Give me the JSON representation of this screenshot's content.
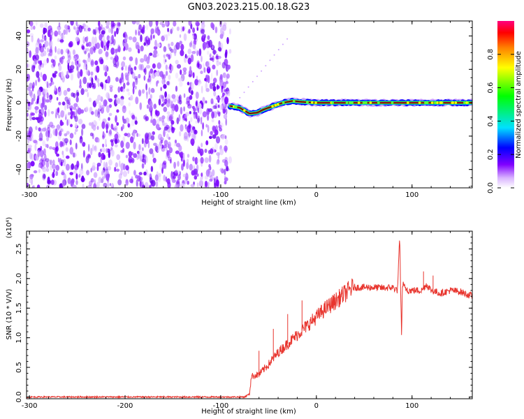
{
  "title": "GN03.2023.215.00.18.G23",
  "colors": {
    "snr_line": "#e8352e",
    "track": "#111111"
  },
  "chart_data": [
    {
      "type": "heatmap",
      "xlabel": "Height of straight line (km)",
      "ylabel": "Frequency (Hz)",
      "xlim": [
        -303,
        163
      ],
      "ylim": [
        -51,
        49
      ],
      "xticks": [
        -300,
        -200,
        -100,
        0,
        100
      ],
      "yticks": [
        -40,
        -20,
        0,
        20,
        40
      ],
      "grid": false,
      "colorbar": {
        "label": "Normalized spectral amplitude",
        "range": [
          0,
          1
        ],
        "ticks": [
          "0.0",
          "0.2",
          "0.4",
          "0.6",
          "0.8"
        ]
      },
      "regions": [
        {
          "x": [
            -303,
            -90
          ],
          "description": "noise",
          "frequency_range": [
            -51,
            49
          ]
        },
        {
          "x": [
            -90,
            163
          ],
          "description": "signal",
          "frequency_range": [
            -8,
            3
          ]
        }
      ],
      "track": {
        "x": [
          -90,
          -80,
          -70,
          -62,
          -55,
          -45,
          -35,
          -25,
          -15,
          0,
          30,
          60,
          100,
          130,
          163
        ],
        "y": [
          -2,
          -3,
          -6.5,
          -6,
          -4,
          -2,
          0,
          1,
          0.5,
          0,
          0,
          0,
          0,
          0,
          0
        ]
      }
    },
    {
      "type": "line",
      "xlabel": "Height of straight line (km)",
      "ylabel": "SNR (10 * V/V)",
      "y_multiplier": "(x10⁴)",
      "xlim": [
        -303,
        163
      ],
      "ylim": [
        -0.03,
        2.8
      ],
      "xticks": [
        -300,
        -200,
        -100,
        0,
        100
      ],
      "yticks": [
        "0.0",
        "0.5",
        "1.0",
        "1.5",
        "2.0",
        "2.5"
      ],
      "ytick_values": [
        0,
        0.5,
        1.0,
        1.5,
        2.0,
        2.5
      ],
      "grid": false,
      "series": [
        {
          "x": [
            -303,
            -200,
            -100,
            -75,
            -70,
            -68,
            -60,
            -50,
            -40,
            -30,
            -20,
            -10,
            0,
            10,
            20,
            30,
            38,
            50,
            60,
            70,
            80,
            85,
            87,
            88,
            89,
            90,
            95,
            100,
            110,
            115,
            120,
            130,
            140,
            150,
            163
          ],
          "y": [
            0.0,
            0.0,
            0.0,
            0.0,
            0.05,
            0.35,
            0.38,
            0.55,
            0.75,
            0.9,
            1.05,
            1.2,
            1.35,
            1.5,
            1.62,
            1.75,
            1.85,
            1.85,
            1.85,
            1.84,
            1.85,
            1.8,
            2.75,
            1.9,
            1.1,
            1.9,
            1.8,
            1.8,
            1.8,
            1.9,
            1.8,
            1.75,
            1.8,
            1.78,
            1.7
          ]
        }
      ]
    }
  ]
}
